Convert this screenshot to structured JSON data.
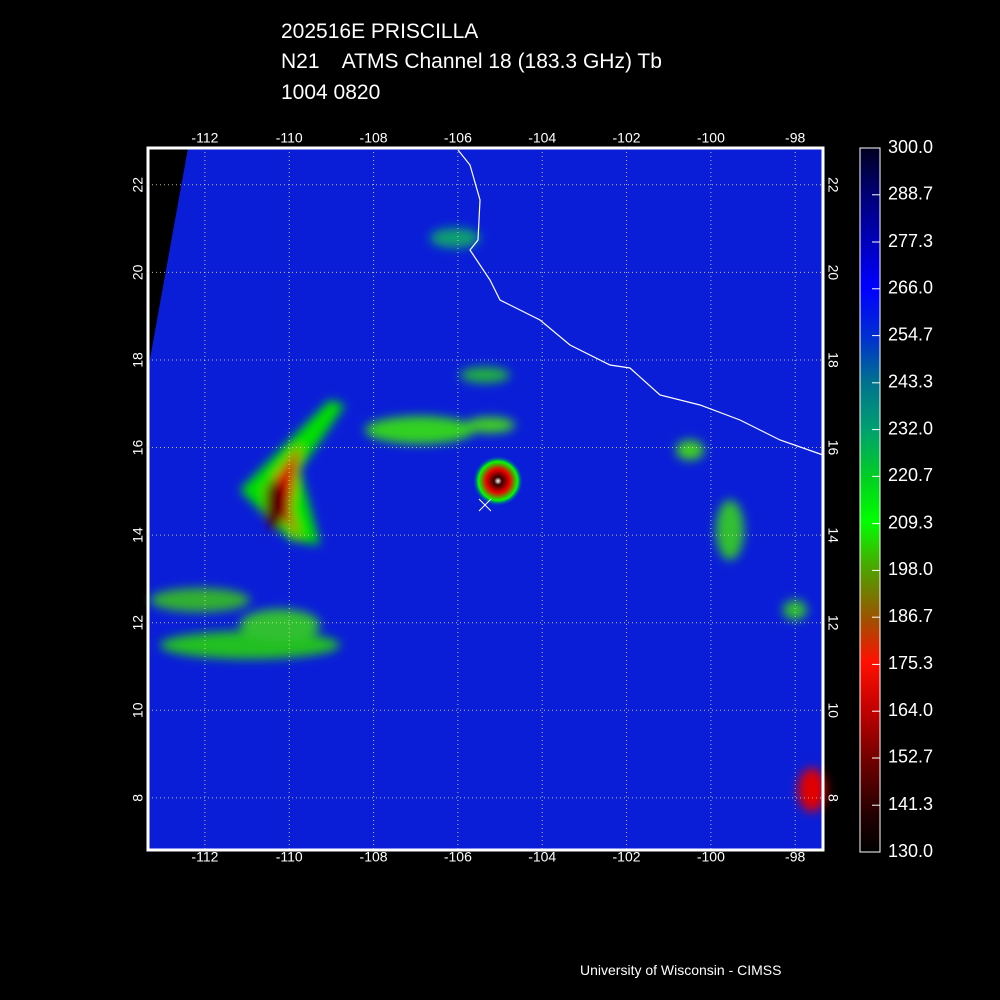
{
  "header": {
    "title": "202516E PRISCILLA",
    "subtitle": "N21    ATMS Channel 18 (183.3 GHz) Tb",
    "time": "1004 0820"
  },
  "map": {
    "xlim": [
      -113.35,
      -97.34
    ],
    "ylim": [
      6.81,
      22.84
    ],
    "xticks": [
      -112,
      -110,
      -108,
      -106,
      -104,
      -102,
      -100,
      -98
    ],
    "yticks": [
      8,
      10,
      12,
      14,
      16,
      18,
      20,
      22
    ],
    "grid": true
  },
  "colorbar": {
    "lim": [
      130,
      300
    ],
    "ticks": [
      {
        "value": 300,
        "label": "300.0"
      },
      {
        "value": 288.7,
        "label": "288.7"
      },
      {
        "value": 277.3,
        "label": "277.3"
      },
      {
        "value": 266,
        "label": "266.0"
      },
      {
        "value": 254.7,
        "label": "254.7"
      },
      {
        "value": 243.3,
        "label": "243.3"
      },
      {
        "value": 232,
        "label": "232.0"
      },
      {
        "value": 220.7,
        "label": "220.7"
      },
      {
        "value": 209.3,
        "label": "209.3"
      },
      {
        "value": 198,
        "label": "198.0"
      },
      {
        "value": 186.7,
        "label": "186.7"
      },
      {
        "value": 175.3,
        "label": "175.3"
      },
      {
        "value": 164,
        "label": "164.0"
      },
      {
        "value": 152.7,
        "label": "152.7"
      },
      {
        "value": 141.3,
        "label": "141.3"
      },
      {
        "value": 130,
        "label": "130.0"
      }
    ]
  },
  "credit": "University of Wisconsin - CIMSS"
}
